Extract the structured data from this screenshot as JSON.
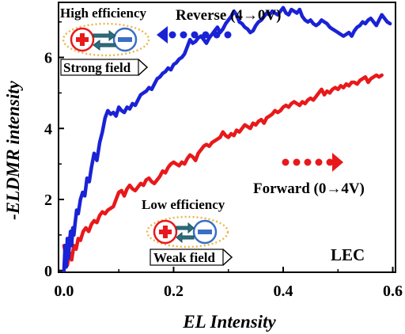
{
  "chart_data": {
    "type": "line",
    "xlabel": "EL Intensity",
    "ylabel": "-ELDMR intensity",
    "xlim": [
      -0.01,
      0.605
    ],
    "ylim": [
      -0.05,
      7.55
    ],
    "xticks": [
      "0.0",
      "0.2",
      "0.4",
      "0.6"
    ],
    "xtick_values": [
      0,
      0.2,
      0.4,
      0.6
    ],
    "yticks": [
      "0",
      "2",
      "4",
      "6"
    ],
    "ytick_values": [
      0,
      2,
      4,
      6
    ],
    "series": [
      {
        "name": "Reverse (4→0V)",
        "color": "#1a22d6",
        "x": [
          0.0,
          0.002,
          0.004,
          0.006,
          0.008,
          0.01,
          0.012,
          0.014,
          0.016,
          0.018,
          0.02,
          0.023,
          0.026,
          0.03,
          0.034,
          0.038,
          0.042,
          0.046,
          0.05,
          0.055,
          0.06,
          0.065,
          0.07,
          0.075,
          0.08,
          0.085,
          0.09,
          0.095,
          0.1,
          0.105,
          0.11,
          0.115,
          0.12,
          0.125,
          0.13,
          0.135,
          0.14,
          0.145,
          0.15,
          0.155,
          0.16,
          0.165,
          0.17,
          0.175,
          0.18,
          0.185,
          0.19,
          0.195,
          0.2,
          0.205,
          0.21,
          0.215,
          0.22,
          0.225,
          0.23,
          0.235,
          0.24,
          0.245,
          0.25,
          0.255,
          0.26,
          0.265,
          0.27,
          0.275,
          0.28,
          0.285,
          0.29,
          0.295,
          0.3,
          0.305,
          0.31,
          0.315,
          0.32,
          0.325,
          0.33,
          0.335,
          0.34,
          0.345,
          0.35,
          0.355,
          0.36,
          0.365,
          0.37,
          0.375,
          0.38,
          0.385,
          0.39,
          0.395,
          0.4,
          0.405,
          0.41,
          0.415,
          0.42,
          0.425,
          0.43,
          0.435,
          0.44,
          0.445,
          0.45,
          0.455,
          0.46,
          0.465,
          0.47,
          0.475,
          0.48,
          0.485,
          0.49,
          0.495,
          0.5,
          0.505,
          0.51,
          0.515,
          0.52,
          0.525,
          0.53,
          0.535,
          0.54,
          0.545,
          0.55,
          0.555,
          0.56,
          0.565,
          0.57,
          0.575,
          0.58,
          0.585,
          0.59,
          0.595
        ],
        "y": [
          0.0,
          0.7,
          0.1,
          0.9,
          0.35,
          0.8,
          1.1,
          0.7,
          1.2,
          1.0,
          1.3,
          1.7,
          1.6,
          2.0,
          2.2,
          2.1,
          2.6,
          2.5,
          2.9,
          3.3,
          3.1,
          3.6,
          3.9,
          4.3,
          4.5,
          4.4,
          4.45,
          4.35,
          4.6,
          4.5,
          4.45,
          4.6,
          4.55,
          4.7,
          4.65,
          4.8,
          4.95,
          5.0,
          5.05,
          5.15,
          5.1,
          5.25,
          5.4,
          5.45,
          5.55,
          5.6,
          5.7,
          5.65,
          5.8,
          5.85,
          5.95,
          6.0,
          6.1,
          6.3,
          6.5,
          6.4,
          6.45,
          6.55,
          6.6,
          6.5,
          6.4,
          6.55,
          6.65,
          6.75,
          6.85,
          6.7,
          6.8,
          6.95,
          7.05,
          7.15,
          7.3,
          7.2,
          7.0,
          6.95,
          6.85,
          6.8,
          6.7,
          6.75,
          6.9,
          7.0,
          7.05,
          7.15,
          7.25,
          7.2,
          7.3,
          7.25,
          7.2,
          7.3,
          7.4,
          7.25,
          7.2,
          7.35,
          7.3,
          7.25,
          7.35,
          7.15,
          7.05,
          7.0,
          7.05,
          6.95,
          6.9,
          6.95,
          7.05,
          7.0,
          6.95,
          6.85,
          6.8,
          6.75,
          6.7,
          6.65,
          6.6,
          6.65,
          6.7,
          6.6,
          6.75,
          6.85,
          6.9,
          7.0,
          6.95,
          7.05,
          7.1,
          7.0,
          6.9,
          7.05,
          7.2,
          7.1,
          7.0,
          6.95
        ]
      },
      {
        "name": "Forward (0→4V)",
        "color": "#e8191b",
        "x": [
          0.0,
          0.003,
          0.006,
          0.01,
          0.014,
          0.018,
          0.022,
          0.026,
          0.03,
          0.035,
          0.04,
          0.045,
          0.05,
          0.055,
          0.06,
          0.065,
          0.07,
          0.075,
          0.08,
          0.085,
          0.09,
          0.095,
          0.1,
          0.105,
          0.11,
          0.115,
          0.12,
          0.125,
          0.13,
          0.135,
          0.14,
          0.145,
          0.15,
          0.155,
          0.16,
          0.165,
          0.17,
          0.175,
          0.18,
          0.185,
          0.19,
          0.195,
          0.2,
          0.205,
          0.21,
          0.215,
          0.22,
          0.225,
          0.23,
          0.235,
          0.24,
          0.245,
          0.25,
          0.255,
          0.26,
          0.265,
          0.27,
          0.275,
          0.28,
          0.285,
          0.29,
          0.295,
          0.3,
          0.305,
          0.31,
          0.315,
          0.32,
          0.325,
          0.33,
          0.335,
          0.34,
          0.345,
          0.35,
          0.355,
          0.36,
          0.365,
          0.37,
          0.375,
          0.38,
          0.385,
          0.39,
          0.395,
          0.4,
          0.405,
          0.41,
          0.415,
          0.42,
          0.425,
          0.43,
          0.435,
          0.44,
          0.445,
          0.45,
          0.455,
          0.46,
          0.465,
          0.47,
          0.475,
          0.48,
          0.485,
          0.49,
          0.495,
          0.5,
          0.505,
          0.51,
          0.515,
          0.52,
          0.525,
          0.53,
          0.535,
          0.54,
          0.545,
          0.55,
          0.555,
          0.56,
          0.565,
          0.57,
          0.575,
          0.58
        ],
        "y": [
          0.7,
          0.45,
          0.15,
          0.5,
          0.3,
          0.7,
          0.6,
          0.9,
          0.85,
          1.1,
          1.2,
          1.1,
          1.3,
          1.4,
          1.35,
          1.55,
          1.65,
          1.6,
          1.7,
          1.75,
          1.8,
          2.0,
          2.2,
          2.25,
          2.1,
          2.3,
          2.4,
          2.3,
          2.25,
          2.35,
          2.45,
          2.4,
          2.55,
          2.6,
          2.5,
          2.45,
          2.55,
          2.65,
          2.8,
          2.75,
          2.9,
          3.0,
          3.05,
          3.0,
          2.95,
          3.05,
          3.0,
          3.15,
          3.25,
          3.2,
          3.1,
          3.3,
          3.4,
          3.5,
          3.55,
          3.5,
          3.6,
          3.65,
          3.7,
          3.75,
          3.9,
          3.8,
          3.75,
          3.85,
          3.8,
          3.95,
          3.9,
          4.0,
          4.1,
          4.05,
          4.0,
          4.15,
          4.1,
          4.2,
          4.25,
          4.15,
          4.3,
          4.35,
          4.4,
          4.5,
          4.45,
          4.5,
          4.6,
          4.65,
          4.6,
          4.7,
          4.75,
          4.7,
          4.65,
          4.75,
          4.7,
          4.8,
          4.85,
          4.8,
          4.9,
          5.0,
          5.1,
          4.95,
          5.05,
          5.0,
          5.1,
          5.15,
          5.1,
          5.2,
          5.15,
          5.25,
          5.2,
          5.3,
          5.3,
          5.25,
          5.35,
          5.4,
          5.45,
          5.3,
          5.4,
          5.45,
          5.5,
          5.45,
          5.5
        ]
      }
    ],
    "annotations": {
      "reverse_label": "Reverse (4→0V)",
      "forward_label": "Forward (0→4V)",
      "high_efficiency": "High efficiency",
      "strong_field": "Strong field",
      "low_efficiency": "Low efficiency",
      "weak_field": "Weak field",
      "device": "LEC"
    },
    "colors": {
      "reverse": "#1a22d6",
      "forward": "#e8191b",
      "hole_particle": "#e8191b",
      "electron_particle": "#3a6fc4",
      "arrow_teal": "#2a6f7f",
      "dotted_ring": "#e8b84a"
    }
  }
}
